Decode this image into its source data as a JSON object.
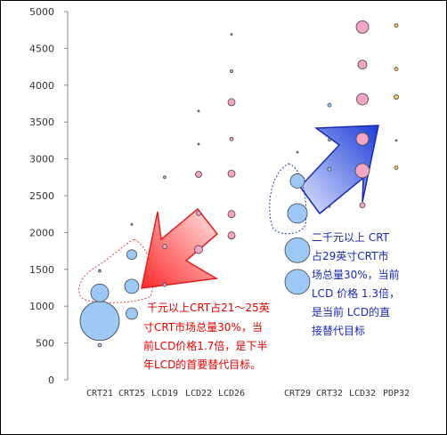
{
  "chart_data": {
    "type": "scatter",
    "ylim": [
      0,
      5000
    ],
    "yticks": [
      0,
      500,
      1000,
      1500,
      2000,
      2500,
      3000,
      3500,
      4000,
      4500,
      5000
    ],
    "categories": [
      "CRT21",
      "CRT25",
      "LCD19",
      "LCD22",
      "LCD26",
      "CRT29",
      "CRT32",
      "LCD32",
      "PDP32"
    ],
    "grid": false,
    "legend": "none",
    "points": [
      {
        "category": "CRT21",
        "y": 800,
        "size": 22,
        "color": "#9cc8f5"
      },
      {
        "category": "CRT21",
        "y": 1180,
        "size": 10,
        "color": "#9cc8f5"
      },
      {
        "category": "CRT21",
        "y": 1480,
        "size": 1.5,
        "color": "#9cc8f5"
      },
      {
        "category": "CRT21",
        "y": 470,
        "size": 2,
        "color": "#9cc8f5"
      },
      {
        "category": "CRT25",
        "y": 900,
        "size": 6.5,
        "color": "#9cc8f5"
      },
      {
        "category": "CRT25",
        "y": 1270,
        "size": 8,
        "color": "#9cc8f5"
      },
      {
        "category": "CRT25",
        "y": 1700,
        "size": 5.5,
        "color": "#9cc8f5"
      },
      {
        "category": "CRT25",
        "y": 2110,
        "size": 1,
        "color": "#9cc8f5"
      },
      {
        "category": "LCD19",
        "y": 1290,
        "size": 2,
        "color": "#f4a4c4"
      },
      {
        "category": "LCD19",
        "y": 1810,
        "size": 2.5,
        "color": "#f4a4c4"
      },
      {
        "category": "LCD19",
        "y": 2750,
        "size": 1.5,
        "color": "#f4a4c4"
      },
      {
        "category": "LCD22",
        "y": 1770,
        "size": 4.5,
        "color": "#f4a4c4"
      },
      {
        "category": "LCD22",
        "y": 2260,
        "size": 2.5,
        "color": "#f4a4c4"
      },
      {
        "category": "LCD22",
        "y": 2790,
        "size": 3.5,
        "color": "#f4a4c4"
      },
      {
        "category": "LCD22",
        "y": 3200,
        "size": 1,
        "color": "#f4a4c4"
      },
      {
        "category": "LCD22",
        "y": 3650,
        "size": 1,
        "color": "#f4a4c4"
      },
      {
        "category": "LCD26",
        "y": 1960,
        "size": 4,
        "color": "#f4a4c4"
      },
      {
        "category": "LCD26",
        "y": 2250,
        "size": 4,
        "color": "#f4a4c4"
      },
      {
        "category": "LCD26",
        "y": 2800,
        "size": 4,
        "color": "#f4a4c4"
      },
      {
        "category": "LCD26",
        "y": 3270,
        "size": 2,
        "color": "#f4a4c4"
      },
      {
        "category": "LCD26",
        "y": 3770,
        "size": 4,
        "color": "#f4a4c4"
      },
      {
        "category": "LCD26",
        "y": 4190,
        "size": 1.5,
        "color": "#f4a4c4"
      },
      {
        "category": "LCD26",
        "y": 4690,
        "size": 1,
        "color": "#f4a4c4"
      },
      {
        "category": "CRT29",
        "y": 1330,
        "size": 14,
        "color": "#9cc8f5"
      },
      {
        "category": "CRT29",
        "y": 1760,
        "size": 14,
        "color": "#9cc8f5"
      },
      {
        "category": "CRT29",
        "y": 2260,
        "size": 11,
        "color": "#9cc8f5"
      },
      {
        "category": "CRT29",
        "y": 2700,
        "size": 8,
        "color": "#9cc8f5"
      },
      {
        "category": "CRT29",
        "y": 3090,
        "size": 1,
        "color": "#9cc8f5"
      },
      {
        "category": "CRT32",
        "y": 2350,
        "size": 0.5,
        "color": "#9cc8f5"
      },
      {
        "category": "CRT32",
        "y": 2860,
        "size": 2,
        "color": "#9cc8f5"
      },
      {
        "category": "CRT32",
        "y": 3260,
        "size": 1.5,
        "color": "#9cc8f5"
      },
      {
        "category": "CRT32",
        "y": 3730,
        "size": 2,
        "color": "#9cc8f5"
      },
      {
        "category": "LCD32",
        "y": 2370,
        "size": 3,
        "color": "#f4a4c4"
      },
      {
        "category": "LCD32",
        "y": 2840,
        "size": 8,
        "color": "#f4a4c4"
      },
      {
        "category": "LCD32",
        "y": 3270,
        "size": 7,
        "color": "#f4a4c4"
      },
      {
        "category": "LCD32",
        "y": 3810,
        "size": 6.5,
        "color": "#f4a4c4"
      },
      {
        "category": "LCD32",
        "y": 4280,
        "size": 5,
        "color": "#f4a4c4"
      },
      {
        "category": "LCD32",
        "y": 4790,
        "size": 7,
        "color": "#f4a4c4"
      },
      {
        "category": "PDP32",
        "y": 2880,
        "size": 2,
        "color": "#f5c85a"
      },
      {
        "category": "PDP32",
        "y": 3250,
        "size": 1,
        "color": "#f5c85a"
      },
      {
        "category": "PDP32",
        "y": 3840,
        "size": 2.5,
        "color": "#f5c85a"
      },
      {
        "category": "PDP32",
        "y": 4220,
        "size": 2,
        "color": "#f5c85a"
      },
      {
        "category": "PDP32",
        "y": 4810,
        "size": 2,
        "color": "#f5c85a"
      }
    ],
    "annotations": [
      {
        "color": "#e00000",
        "lines": [
          "千元以上CRT占21～25英",
          "寸CRT市场总量30%，当",
          "前LCD价格1.7倍，是下半",
          "年LCD的首要替代目标。"
        ]
      },
      {
        "color": "#1a2ab0",
        "lines": [
          "二千元以上 CRT",
          "占29英寸CRT市",
          "场总量30%，当前",
          "LCD 价格 1.3倍，",
          "是当前 LCD的直",
          "接替代目标"
        ]
      }
    ]
  },
  "colors": {
    "crt": "#9cc8f5",
    "lcd": "#f4a4c4",
    "pdp": "#f5c85a",
    "red_arrow": "#ff3030",
    "blue_arrow": "#2850e0"
  }
}
